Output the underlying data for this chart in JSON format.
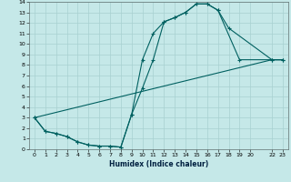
{
  "title": "",
  "xlabel": "Humidex (Indice chaleur)",
  "xlim": [
    -0.5,
    23.5
  ],
  "ylim": [
    0,
    14
  ],
  "background_color": "#c5e8e8",
  "grid_color": "#a8d0d0",
  "line_color": "#006060",
  "line1_x": [
    0,
    1,
    2,
    3,
    4,
    5,
    6,
    7,
    8,
    9,
    10,
    11,
    12,
    13,
    14,
    15,
    16,
    17,
    18,
    22,
    23
  ],
  "line1_y": [
    3.0,
    1.7,
    1.5,
    1.2,
    0.7,
    0.4,
    0.3,
    0.3,
    0.2,
    3.3,
    8.5,
    11.0,
    12.1,
    12.5,
    13.0,
    13.8,
    13.8,
    13.2,
    11.5,
    8.5,
    8.5
  ],
  "line2_x": [
    0,
    1,
    2,
    3,
    4,
    5,
    6,
    7,
    8,
    9,
    10,
    11,
    12,
    13,
    14,
    15,
    16,
    17,
    19,
    22,
    23
  ],
  "line2_y": [
    3.0,
    1.7,
    1.5,
    1.2,
    0.7,
    0.4,
    0.3,
    0.3,
    0.2,
    3.3,
    5.8,
    8.5,
    12.1,
    12.5,
    13.0,
    13.8,
    13.8,
    13.2,
    8.5,
    8.5,
    8.5
  ],
  "line3_x": [
    0,
    22,
    23
  ],
  "line3_y": [
    3.0,
    8.5,
    8.5
  ],
  "xticks": [
    0,
    1,
    2,
    3,
    4,
    5,
    6,
    7,
    8,
    9,
    10,
    11,
    12,
    13,
    14,
    15,
    16,
    17,
    18,
    19,
    20,
    22,
    23
  ],
  "xtick_labels": [
    "0",
    "1",
    "2",
    "3",
    "4",
    "5",
    "6",
    "7",
    "8",
    "9",
    "10",
    "11",
    "12",
    "13",
    "14",
    "15",
    "16",
    "17",
    "18",
    "19",
    "20",
    "22",
    "23"
  ],
  "yticks": [
    0,
    1,
    2,
    3,
    4,
    5,
    6,
    7,
    8,
    9,
    10,
    11,
    12,
    13,
    14
  ]
}
